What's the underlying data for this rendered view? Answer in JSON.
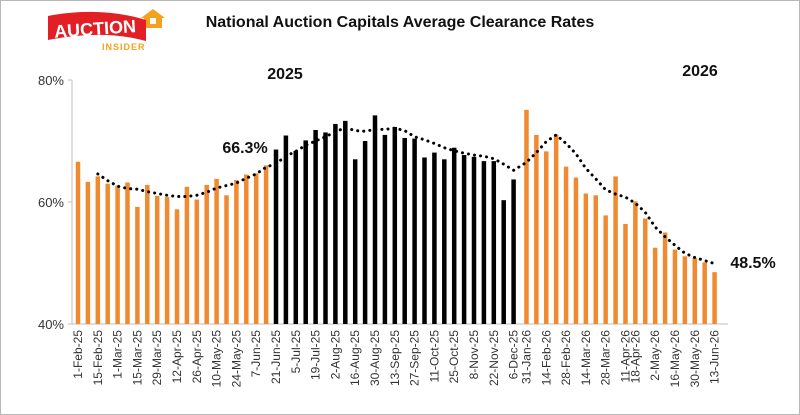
{
  "brand": {
    "name_top": "AUCTION",
    "name_bottom": "INSIDER",
    "colors": {
      "red": "#e31f26",
      "orange": "#f4a21d"
    }
  },
  "chart_data": {
    "type": "bar",
    "title": "National Auction Capitals Average Clearance Rates",
    "xlabel": "",
    "ylabel": "",
    "ylim": [
      40,
      80
    ],
    "yticks": [
      "40%",
      "60%",
      "80%"
    ],
    "grid": false,
    "x_tick_labels": [
      "1-Feb-25",
      "15-Feb-25",
      "1-Mar-25",
      "15-Mar-25",
      "29-Mar-25",
      "12-Apr-25",
      "26-Apr-25",
      "10-May-25",
      "24-May-25",
      "7-Jun-25",
      "21-Jun-25",
      "5-Jul-25",
      "19-Jul-25",
      "2-Aug-25",
      "16-Aug-25",
      "30-Aug-25",
      "13-Sep-25",
      "27-Sep-25",
      "11-Oct-25",
      "25-Oct-25",
      "8-Nov-25",
      "22-Nov-25",
      "6-Dec-25",
      "31-Jan-26",
      "14-Feb-26",
      "28-Feb-26",
      "14-Mar-26",
      "28-Mar-26",
      "11-Apr-26",
      "18-Apr-26",
      "2-May-26",
      "16-May-26",
      "30-May-26",
      "13-Jun-26"
    ],
    "series": [
      {
        "color_2025_early": "#f08a30",
        "color_2025_mid": "#000000",
        "color_2026": "#f08a30",
        "values": [
          66.6,
          63.3,
          64.2,
          63.0,
          62.7,
          63.2,
          59.2,
          62.8,
          61.0,
          60.8,
          58.8,
          62.5,
          60.4,
          62.8,
          63.8,
          61.1,
          63.6,
          64.5,
          64.7,
          66.0,
          68.6,
          70.9,
          68.4,
          70.1,
          71.8,
          71.4,
          72.8,
          73.3,
          67.0,
          70.0,
          74.2,
          71.0,
          72.3,
          70.5,
          70.4,
          67.3,
          68.1,
          67.0,
          68.9,
          67.7,
          67.4,
          66.7,
          66.7,
          60.3,
          63.7,
          75.1,
          71.0,
          68.3,
          71.1,
          65.8,
          64.0,
          61.4,
          61.1,
          57.8,
          64.2,
          56.4,
          60.1,
          57.3,
          52.5,
          55.0,
          52.2,
          51.1,
          50.8,
          50.1,
          48.5
        ]
      }
    ],
    "trend": {
      "type": "line",
      "style": "dotted",
      "color": "#000000",
      "values": [
        null,
        null,
        64.6,
        63.5,
        62.6,
        62.2,
        62.1,
        61.7,
        61.4,
        61.1,
        60.9,
        60.9,
        61.1,
        61.6,
        62.3,
        62.7,
        63.1,
        63.9,
        64.6,
        65.7,
        66.3,
        67.5,
        68.3,
        69.3,
        70.0,
        70.7,
        71.5,
        72.2,
        71.7,
        71.6,
        71.9,
        71.9,
        72.1,
        71.7,
        70.7,
        70.2,
        69.6,
        68.9,
        68.4,
        68.0,
        67.7,
        67.5,
        67.1,
        66.2,
        65.2,
        66.5,
        68.1,
        69.9,
        71.0,
        69.6,
        67.9,
        65.5,
        63.8,
        62.0,
        61.3,
        60.8,
        59.8,
        58.3,
        55.9,
        54.3,
        52.9,
        51.6,
        50.9,
        50.4,
        49.9
      ]
    },
    "annotations": [
      {
        "text": "2025",
        "anchor_index": 11
      },
      {
        "text": "2026",
        "anchor_index": 60
      },
      {
        "text": "66.3%",
        "anchor_index": 20
      },
      {
        "text": "48.5%",
        "anchor_index": 64
      }
    ],
    "boundaries": {
      "black_start": 20,
      "black_end": 44,
      "gap_after": 44
    }
  }
}
